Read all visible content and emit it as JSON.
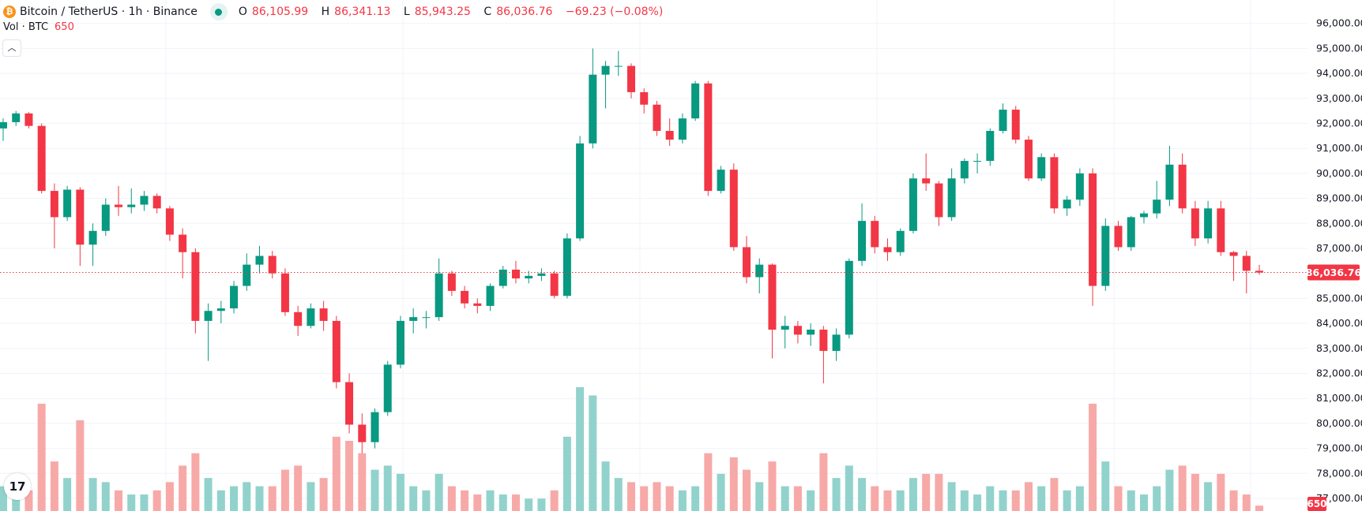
{
  "header": {
    "symbol": "Bitcoin / TetherUS · 1h · Binance",
    "symbol_icon": "bitcoin-icon",
    "market_status": "open",
    "ohlc": {
      "o_label": "O",
      "o": "86,105.99",
      "h_label": "H",
      "h": "86,341.13",
      "l_label": "L",
      "l": "85,943.25",
      "c_label": "C",
      "c": "86,036.76",
      "change": "−69.23 (−0.08%)"
    }
  },
  "volume_legend": {
    "label": "Vol · BTC",
    "value": "650"
  },
  "collapse_icon": "chevron-up-icon",
  "logo": "TV",
  "colors": {
    "up": "#089981",
    "down": "#f23645",
    "vol_up": "#92d2cc",
    "vol_down": "#f7a9a7",
    "grid": "#f0f3fa"
  },
  "chart_data": {
    "type": "candlestick",
    "ylim": [
      76800,
      97000
    ],
    "y_ticks": [
      "96,000.00",
      "95,000.00",
      "94,000.00",
      "93,000.00",
      "92,000.00",
      "91,000.00",
      "90,000.00",
      "89,000.00",
      "88,000.00",
      "87,000.00",
      "85,000.00",
      "84,000.00",
      "83,000.00",
      "82,000.00",
      "81,000.00",
      "80,000.00",
      "79,000.00",
      "78,000.00",
      "77,000.00"
    ],
    "last_price": 86036.76,
    "last_price_label": "86,036.76",
    "last_volume_label": "650",
    "candles_ohlcv": [
      [
        91800,
        92200,
        91300,
        92050,
        3000
      ],
      [
        92050,
        92500,
        91900,
        92400,
        2000
      ],
      [
        92400,
        92450,
        91800,
        91900,
        2500
      ],
      [
        91900,
        92000,
        89200,
        89300,
        13000
      ],
      [
        89300,
        89600,
        87000,
        88250,
        6000
      ],
      [
        88250,
        89500,
        88100,
        89350,
        4000
      ],
      [
        89350,
        89450,
        86300,
        87150,
        11000
      ],
      [
        87150,
        88000,
        86300,
        87700,
        4000
      ],
      [
        87700,
        89000,
        87500,
        88750,
        3500
      ],
      [
        88750,
        89500,
        88300,
        88650,
        2500
      ],
      [
        88650,
        89400,
        88400,
        88750,
        2000
      ],
      [
        88750,
        89300,
        88500,
        89100,
        2000
      ],
      [
        89100,
        89200,
        88400,
        88600,
        2500
      ],
      [
        88600,
        88700,
        87300,
        87550,
        3500
      ],
      [
        87550,
        87800,
        85800,
        86850,
        5500
      ],
      [
        86850,
        87000,
        83600,
        84100,
        7000
      ],
      [
        84100,
        84800,
        82500,
        84500,
        4000
      ],
      [
        84500,
        84900,
        84000,
        84600,
        2500
      ],
      [
        84600,
        85700,
        84400,
        85500,
        3000
      ],
      [
        85500,
        86800,
        85300,
        86350,
        3500
      ],
      [
        86350,
        87100,
        86000,
        86700,
        3000
      ],
      [
        86700,
        86900,
        85800,
        86000,
        3000
      ],
      [
        86000,
        86200,
        84300,
        84450,
        5000
      ],
      [
        84450,
        84700,
        83500,
        83900,
        5500
      ],
      [
        83900,
        84800,
        83800,
        84600,
        3500
      ],
      [
        84600,
        84900,
        83700,
        84100,
        4000
      ],
      [
        84100,
        84300,
        81400,
        81650,
        9000
      ],
      [
        81650,
        82000,
        79600,
        79950,
        8500
      ],
      [
        79950,
        80400,
        78800,
        79250,
        7000
      ],
      [
        79250,
        80600,
        79000,
        80450,
        5000
      ],
      [
        80450,
        82500,
        80300,
        82350,
        5500
      ],
      [
        82350,
        84300,
        82200,
        84100,
        4500
      ],
      [
        84100,
        84600,
        83600,
        84250,
        3000
      ],
      [
        84250,
        84500,
        83800,
        84250,
        2500
      ],
      [
        84250,
        86600,
        84100,
        86000,
        4500
      ],
      [
        86000,
        86100,
        85100,
        85300,
        3000
      ],
      [
        85300,
        85500,
        84600,
        84800,
        2500
      ],
      [
        84800,
        85000,
        84400,
        84700,
        2000
      ],
      [
        84700,
        85600,
        84500,
        85500,
        2500
      ],
      [
        85500,
        86300,
        85400,
        86150,
        2000
      ],
      [
        86150,
        86500,
        85600,
        85800,
        2000
      ],
      [
        85800,
        86100,
        85600,
        85900,
        1500
      ],
      [
        85900,
        86200,
        85700,
        86000,
        1500
      ],
      [
        86000,
        86100,
        85000,
        85100,
        2500
      ],
      [
        85100,
        87600,
        85000,
        87400,
        9000
      ],
      [
        87400,
        91500,
        87300,
        91200,
        15000
      ],
      [
        91200,
        95000,
        91000,
        93950,
        14000
      ],
      [
        93950,
        94500,
        92600,
        94300,
        6000
      ],
      [
        94300,
        94900,
        93900,
        94300,
        4000
      ],
      [
        94300,
        94400,
        93000,
        93250,
        3500
      ],
      [
        93250,
        93400,
        92400,
        92750,
        3000
      ],
      [
        92750,
        92900,
        91500,
        91700,
        3500
      ],
      [
        91700,
        92200,
        91100,
        91350,
        3000
      ],
      [
        91350,
        92400,
        91200,
        92200,
        2500
      ],
      [
        92200,
        93700,
        92100,
        93600,
        3000
      ],
      [
        93600,
        93700,
        89100,
        89300,
        7000
      ],
      [
        89300,
        90300,
        89200,
        90150,
        4500
      ],
      [
        90150,
        90400,
        86900,
        87050,
        6500
      ],
      [
        87050,
        87500,
        85600,
        85850,
        5000
      ],
      [
        85850,
        86600,
        85200,
        86350,
        3500
      ],
      [
        86350,
        86400,
        82600,
        83750,
        6000
      ],
      [
        83750,
        84300,
        83000,
        83900,
        3000
      ],
      [
        83900,
        84100,
        83200,
        83550,
        3000
      ],
      [
        83550,
        84000,
        83100,
        83750,
        2500
      ],
      [
        83750,
        83900,
        81600,
        82900,
        7000
      ],
      [
        82900,
        83800,
        82500,
        83550,
        4000
      ],
      [
        83550,
        86600,
        83400,
        86500,
        5500
      ],
      [
        86500,
        88800,
        86300,
        88100,
        4000
      ],
      [
        88100,
        88300,
        86800,
        87050,
        3000
      ],
      [
        87050,
        87400,
        86500,
        86850,
        2500
      ],
      [
        86850,
        87800,
        86700,
        87700,
        2500
      ],
      [
        87700,
        90000,
        87600,
        89800,
        4000
      ],
      [
        89800,
        90800,
        89300,
        89600,
        4500
      ],
      [
        89600,
        89700,
        87900,
        88250,
        4500
      ],
      [
        88250,
        90200,
        88100,
        89800,
        3500
      ],
      [
        89800,
        90600,
        89600,
        90500,
        2500
      ],
      [
        90500,
        90800,
        90000,
        90500,
        2000
      ],
      [
        90500,
        91800,
        90300,
        91700,
        3000
      ],
      [
        91700,
        92800,
        91600,
        92550,
        2500
      ],
      [
        92550,
        92700,
        91200,
        91350,
        2500
      ],
      [
        91350,
        91500,
        89700,
        89800,
        3500
      ],
      [
        89800,
        90800,
        89700,
        90650,
        3000
      ],
      [
        90650,
        90800,
        88400,
        88600,
        4000
      ],
      [
        88600,
        89100,
        88300,
        88950,
        2500
      ],
      [
        88950,
        90200,
        88700,
        90000,
        3000
      ],
      [
        90000,
        90200,
        84700,
        85500,
        13000
      ],
      [
        85500,
        88200,
        85300,
        87900,
        6000
      ],
      [
        87900,
        88100,
        86900,
        87050,
        3000
      ],
      [
        87050,
        88300,
        86900,
        88250,
        2500
      ],
      [
        88250,
        88500,
        88000,
        88400,
        2000
      ],
      [
        88400,
        89700,
        88200,
        88950,
        3000
      ],
      [
        88950,
        91100,
        88700,
        90350,
        5000
      ],
      [
        90350,
        90800,
        88400,
        88600,
        5500
      ],
      [
        88600,
        88900,
        87100,
        87400,
        4500
      ],
      [
        87400,
        88900,
        87200,
        88600,
        3500
      ],
      [
        88600,
        88900,
        86700,
        86850,
        4500
      ],
      [
        86850,
        86900,
        85700,
        86700,
        2500
      ],
      [
        86700,
        86900,
        85200,
        86105.99,
        2000
      ],
      [
        86105.99,
        86341.13,
        85943.25,
        86036.76,
        650
      ]
    ]
  }
}
